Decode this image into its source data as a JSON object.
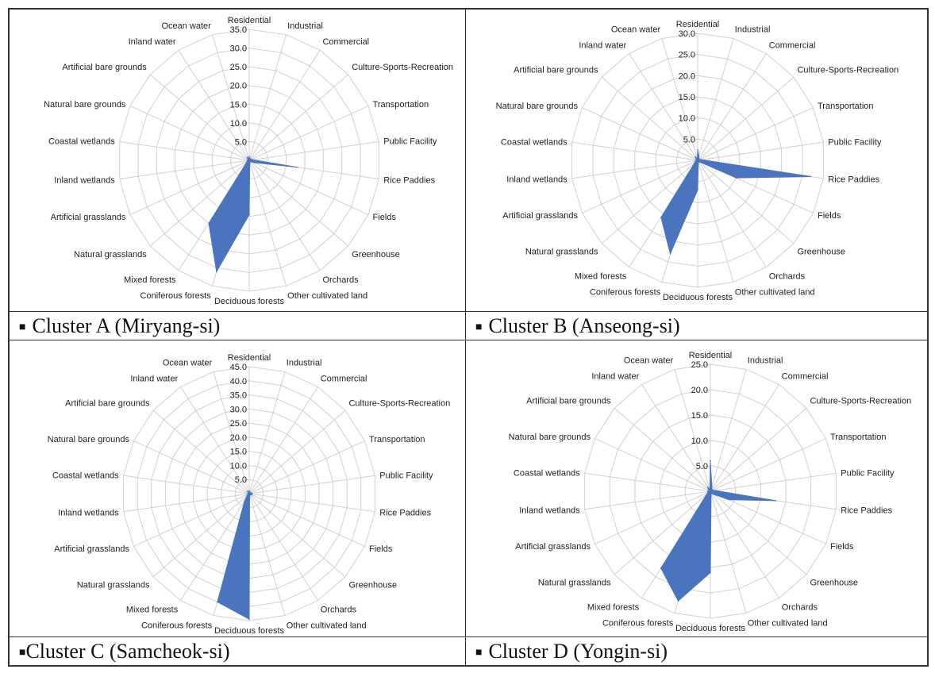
{
  "chart_data": [
    {
      "type": "radar",
      "caption": "Cluster A (Miryang-si)",
      "categories": [
        "Residential",
        "Industrial",
        "Commercial",
        "Culture-Sports-Recreation",
        "Transportation",
        "Public Facility",
        "Rice Paddies",
        "Fields",
        "Greenhouse",
        "Orchards",
        "Other cultivated land",
        "Deciduous forests",
        "Coniferous forests",
        "Mixed forests",
        "Natural grasslands",
        "Artificial grasslands",
        "Inland wetlands",
        "Coastal wetlands",
        "Natural bare grounds",
        "Artificial bare grounds",
        "Inland water",
        "Ocean water"
      ],
      "values": [
        1.0,
        0.5,
        0.5,
        0.5,
        0.5,
        1.0,
        13.0,
        1.5,
        0.5,
        0.5,
        0.5,
        14.5,
        31.0,
        20.0,
        1.0,
        0.5,
        0.5,
        0.3,
        0.3,
        0.5,
        1.0,
        0.3
      ],
      "ticks": [
        "5.0",
        "10.0",
        "15.0",
        "20.0",
        "25.0",
        "30.0",
        "35.0"
      ],
      "rmax": 35
    },
    {
      "type": "radar",
      "caption": "Cluster B (Anseong-si)",
      "categories": [
        "Residential",
        "Industrial",
        "Commercial",
        "Culture-Sports-Recreation",
        "Transportation",
        "Public Facility",
        "Rice Paddies",
        "Fields",
        "Greenhouse",
        "Orchards",
        "Other cultivated land",
        "Deciduous forests",
        "Coniferous forests",
        "Mixed forests",
        "Natural grasslands",
        "Artificial grasslands",
        "Inland wetlands",
        "Coastal wetlands",
        "Natural bare grounds",
        "Artificial bare grounds",
        "Inland water",
        "Ocean water"
      ],
      "values": [
        2.5,
        1.0,
        0.5,
        0.5,
        0.5,
        1.0,
        27.0,
        10.0,
        0.5,
        0.5,
        0.5,
        7.0,
        23.0,
        16.0,
        1.0,
        0.5,
        0.5,
        0.3,
        0.3,
        0.5,
        1.0,
        0.3
      ],
      "ticks": [
        "5.0",
        "10.0",
        "15.0",
        "20.0",
        "25.0",
        "30.0"
      ],
      "rmax": 30
    },
    {
      "type": "radar",
      "caption": "Cluster C (Samcheok-si)",
      "categories": [
        "Residential",
        "Industrial",
        "Commercial",
        "Culture-Sports-Recreation",
        "Transportation",
        "Public Facility",
        "Rice Paddies",
        "Fields",
        "Greenhouse",
        "Orchards",
        "Other cultivated land",
        "Deciduous forests",
        "Coniferous forests",
        "Mixed forests",
        "Natural grasslands",
        "Artificial grasslands",
        "Inland wetlands",
        "Coastal wetlands",
        "Natural bare grounds",
        "Artificial bare grounds",
        "Inland water",
        "Ocean water"
      ],
      "values": [
        1.0,
        0.5,
        0.5,
        0.5,
        0.5,
        1.0,
        1.0,
        1.0,
        0.5,
        0.5,
        0.5,
        44.5,
        40.0,
        3.0,
        1.0,
        0.5,
        0.5,
        0.3,
        0.3,
        0.5,
        1.0,
        0.3
      ],
      "ticks": [
        "5.0",
        "10.0",
        "15.0",
        "20.0",
        "25.0",
        "30.0",
        "35.0",
        "40.0",
        "45.0"
      ],
      "rmax": 45
    },
    {
      "type": "radar",
      "caption": "Cluster D (Yongin-si)",
      "categories": [
        "Residential",
        "Industrial",
        "Commercial",
        "Culture-Sports-Recreation",
        "Transportation",
        "Public Facility",
        "Rice Paddies",
        "Fields",
        "Greenhouse",
        "Orchards",
        "Other cultivated land",
        "Deciduous forests",
        "Coniferous forests",
        "Mixed forests",
        "Natural grasslands",
        "Artificial grasslands",
        "Inland wetlands",
        "Coastal wetlands",
        "Natural bare grounds",
        "Artificial bare grounds",
        "Inland water",
        "Ocean water"
      ],
      "values": [
        6.0,
        1.0,
        0.5,
        0.5,
        0.5,
        1.0,
        13.0,
        4.0,
        1.0,
        0.5,
        0.5,
        16.0,
        22.5,
        18.0,
        1.0,
        0.5,
        0.5,
        0.3,
        0.3,
        0.5,
        1.0,
        0.3
      ],
      "ticks": [
        "5.0",
        "10.0",
        "15.0",
        "20.0",
        "25.0"
      ],
      "rmax": 25
    }
  ],
  "colors": {
    "fill": "#4a74bd",
    "grid": "#d0d0d0"
  }
}
